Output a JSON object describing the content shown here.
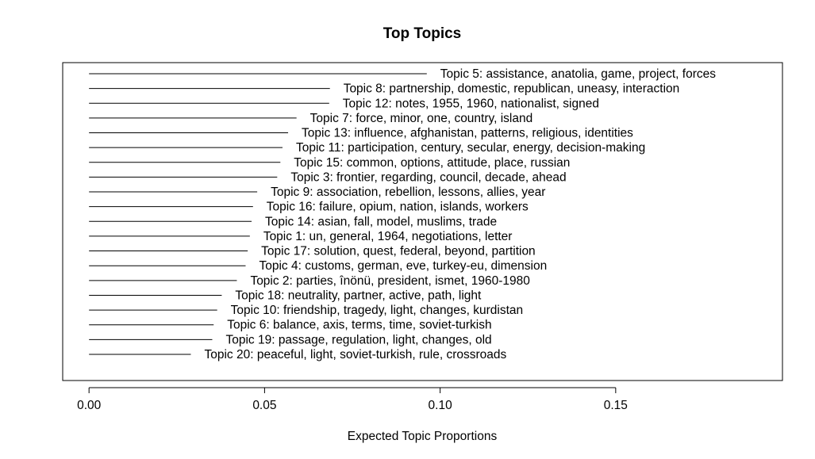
{
  "chart_data": {
    "type": "bar",
    "title": "Top Topics",
    "xlabel": "Expected Topic Proportions",
    "ylabel": "",
    "xlim": [
      -0.0075,
      0.1975
    ],
    "x_ticks": [
      0.0,
      0.05,
      0.1,
      0.15
    ],
    "x_tick_labels": [
      "0.00",
      "0.05",
      "0.10",
      "0.15"
    ],
    "grid": false,
    "legend": "none",
    "orientation": "horizontal",
    "colors": {
      "line": "#000000",
      "background": "#ffffff"
    },
    "series": [
      {
        "categories": [
          "Topic 5: assistance, anatolia, game, project, forces",
          "Topic 8: partnership, domestic, republican, uneasy, interaction",
          "Topic 12: notes, 1955, 1960, nationalist, signed",
          "Topic 7: force, minor, one, country, island",
          "Topic 13: influence, afghanistan, patterns, religious, identities",
          "Topic 11: participation, century, secular, energy, decision-making",
          "Topic 15: common, options, attitude, place, russian",
          "Topic 3: frontier, regarding, council, decade, ahead",
          "Topic 9: association, rebellion, lessons, allies, year",
          "Topic 16: failure, opium, nation, islands, workers",
          "Topic 14: asian, fall, model, muslims, trade",
          "Topic 1: un, general, 1964, negotiations, letter",
          "Topic 17: solution, quest, federal, beyond, partition",
          "Topic 4: customs, german, eve, turkey-eu, dimension",
          "Topic 2: parties, înönü, president, ismet, 1960-1980",
          "Topic 18: neutrality, partner, active, path, light",
          "Topic 10: friendship, tragedy, light, changes, kurdistan",
          "Topic 6: balance, axis, terms, time, soviet-turkish",
          "Topic 19: passage, regulation, light, changes, old",
          "Topic 20: peaceful, light, soviet-turkish, rule, crossroads"
        ],
        "values": [
          0.0962,
          0.0686,
          0.0684,
          0.0591,
          0.0567,
          0.0551,
          0.0545,
          0.0536,
          0.0479,
          0.0467,
          0.0463,
          0.0458,
          0.0452,
          0.0446,
          0.0421,
          0.0378,
          0.0365,
          0.0355,
          0.0351,
          0.029
        ]
      }
    ]
  }
}
